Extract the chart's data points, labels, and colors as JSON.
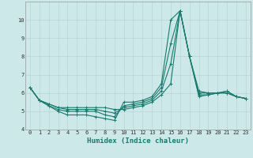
{
  "xlabel": "Humidex (Indice chaleur)",
  "ylabel": "",
  "x_values": [
    0,
    1,
    2,
    3,
    4,
    5,
    6,
    7,
    8,
    9,
    10,
    11,
    12,
    13,
    14,
    15,
    16,
    17,
    18,
    19,
    20,
    21,
    22,
    23
  ],
  "lines": [
    [
      6.3,
      5.6,
      5.3,
      5.0,
      4.8,
      4.8,
      4.8,
      4.7,
      4.6,
      4.5,
      5.5,
      5.5,
      5.6,
      5.8,
      6.5,
      10.0,
      10.5,
      8.0,
      5.8,
      5.9,
      6.0,
      6.1,
      5.8,
      5.7
    ],
    [
      6.3,
      5.6,
      5.3,
      5.1,
      5.0,
      5.0,
      5.0,
      5.0,
      4.8,
      4.7,
      5.3,
      5.4,
      5.5,
      5.7,
      6.3,
      8.7,
      10.5,
      8.0,
      5.9,
      5.9,
      6.0,
      6.1,
      5.8,
      5.7
    ],
    [
      6.3,
      5.6,
      5.4,
      5.2,
      5.1,
      5.1,
      5.1,
      5.1,
      5.0,
      4.9,
      5.2,
      5.3,
      5.4,
      5.6,
      6.1,
      7.6,
      10.5,
      8.0,
      6.0,
      6.0,
      6.0,
      6.0,
      5.8,
      5.7
    ],
    [
      6.3,
      5.6,
      5.4,
      5.2,
      5.2,
      5.2,
      5.2,
      5.2,
      5.2,
      5.1,
      5.1,
      5.2,
      5.3,
      5.5,
      5.9,
      6.5,
      10.5,
      8.0,
      6.1,
      6.0,
      6.0,
      6.0,
      5.8,
      5.7
    ]
  ],
  "line_color": "#1a7a6e",
  "bg_color": "#cce8e8",
  "grid_color": "#b8d4d4",
  "ylim": [
    4.0,
    11.0
  ],
  "xlim": [
    -0.5,
    23.5
  ],
  "yticks": [
    4,
    5,
    6,
    7,
    8,
    9,
    10
  ],
  "xticks": [
    0,
    1,
    2,
    3,
    4,
    5,
    6,
    7,
    8,
    9,
    10,
    11,
    12,
    13,
    14,
    15,
    16,
    17,
    18,
    19,
    20,
    21,
    22,
    23
  ],
  "marker": "+",
  "markersize": 3,
  "linewidth": 0.8,
  "tick_fontsize": 5.0,
  "xlabel_fontsize": 6.5
}
